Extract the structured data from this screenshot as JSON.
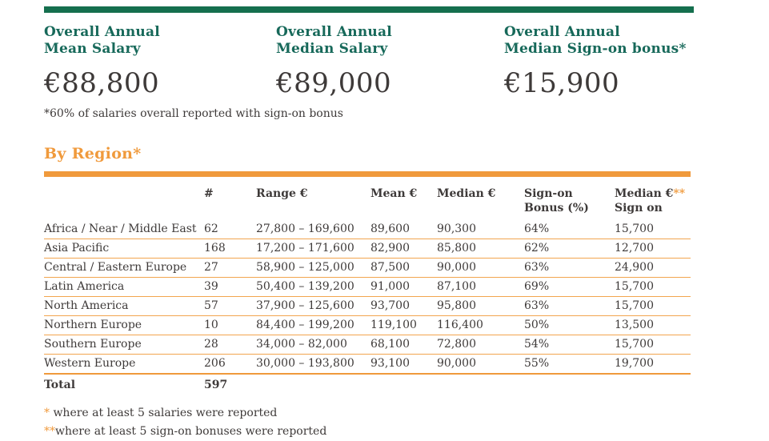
{
  "theme": {
    "green_bar_color": "#156f4e",
    "teal_text_color": "#17695a",
    "orange_color": "#f09a3c",
    "dark_text_color": "#3e3a39"
  },
  "summary": {
    "stats": [
      {
        "label_line1": "Overall Annual",
        "label_line2": "Mean Salary",
        "value": "€88,800"
      },
      {
        "label_line1": "Overall Annual",
        "label_line2": "Median Salary",
        "value": "€89,000"
      },
      {
        "label_line1": "Overall Annual",
        "label_line2": "Median Sign-on bonus*",
        "value": "€15,900"
      }
    ],
    "footnote": "*60% of salaries overall reported with sign-on bonus"
  },
  "region_section": {
    "title": "By Region*",
    "table": {
      "headers": {
        "count": "#",
        "range": "Range €",
        "mean": "Mean €",
        "median": "Median €",
        "signon_line1": "Sign-on",
        "signon_line2": "Bonus (%)",
        "median_signon_line1": "Median €",
        "median_signon_suffix": "**",
        "median_signon_line2": "Sign on"
      },
      "rows": [
        {
          "region": "Africa / Near / Middle East",
          "n": "62",
          "range": "27,800 – 169,600",
          "mean": "89,600",
          "median": "90,300",
          "signon_pct": "64%",
          "median_signon": "15,700"
        },
        {
          "region": "Asia Pacific",
          "n": "168",
          "range": "17,200 – 171,600",
          "mean": "82,900",
          "median": "85,800",
          "signon_pct": "62%",
          "median_signon": "12,700"
        },
        {
          "region": "Central / Eastern Europe",
          "n": "27",
          "range": "58,900 – 125,000",
          "mean": "87,500",
          "median": "90,000",
          "signon_pct": "63%",
          "median_signon": "24,900"
        },
        {
          "region": "Latin America",
          "n": "39",
          "range": "50,400 – 139,200",
          "mean": "91,000",
          "median": "87,100",
          "signon_pct": "69%",
          "median_signon": "15,700"
        },
        {
          "region": "North America",
          "n": "57",
          "range": "37,900 – 125,600",
          "mean": "93,700",
          "median": "95,800",
          "signon_pct": "63%",
          "median_signon": "15,700"
        },
        {
          "region": "Northern Europe",
          "n": "10",
          "range": "84,400 – 199,200",
          "mean": "119,100",
          "median": "116,400",
          "signon_pct": "50%",
          "median_signon": "13,500"
        },
        {
          "region": "Southern Europe",
          "n": "28",
          "range": "34,000 – 82,000",
          "mean": "68,100",
          "median": "72,800",
          "signon_pct": "54%",
          "median_signon": "15,700"
        },
        {
          "region": "Western Europe",
          "n": "206",
          "range": "30,000 – 193,800",
          "mean": "93,100",
          "median": "90,000",
          "signon_pct": "55%",
          "median_signon": "19,700"
        }
      ],
      "total": {
        "label": "Total",
        "n": "597"
      }
    },
    "footnotes": [
      {
        "marker": "*",
        "text": " where at least 5 salaries were reported"
      },
      {
        "marker": "**",
        "text": "where at least 5 sign-on bonuses were reported"
      }
    ]
  }
}
